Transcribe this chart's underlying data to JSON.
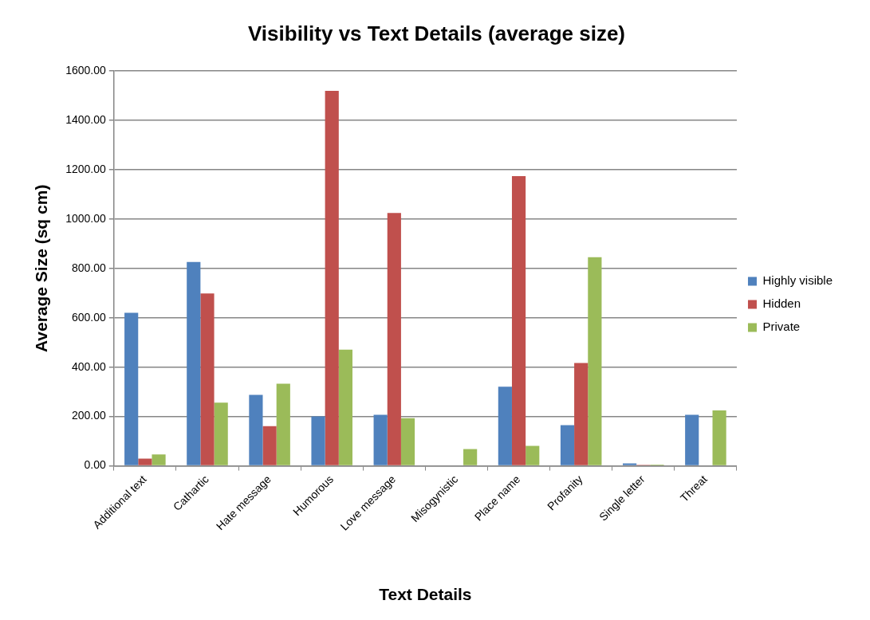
{
  "chart_data": {
    "type": "bar",
    "title": "Visibility vs Text Details (average size)",
    "xlabel": "Text Details",
    "ylabel": "Average Size (sq cm)",
    "categories": [
      "Additional text",
      "Cathartic",
      "Hate message",
      "Humorous",
      "Love message",
      "Misogynistic",
      "Place name",
      "Profanity",
      "Single letter",
      "Threat"
    ],
    "series": [
      {
        "name": "Highly visible",
        "color": "#4f81bd",
        "values": [
          620,
          826,
          288,
          200,
          207,
          null,
          321,
          165,
          10,
          207
        ]
      },
      {
        "name": "Hidden",
        "color": "#c0504d",
        "values": [
          29,
          699,
          161,
          1520,
          1025,
          null,
          1174,
          417,
          4,
          null
        ]
      },
      {
        "name": "Private",
        "color": "#9bbb59",
        "values": [
          46,
          256,
          333,
          471,
          193,
          68,
          81,
          846,
          5,
          225
        ]
      }
    ],
    "ylim": [
      0,
      1600
    ],
    "yticks": [
      {
        "value": 0,
        "label": "0.00"
      },
      {
        "value": 200,
        "label": "200.00"
      },
      {
        "value": 400,
        "label": "400.00"
      },
      {
        "value": 600,
        "label": "600.00"
      },
      {
        "value": 800,
        "label": "800.00"
      },
      {
        "value": 1000,
        "label": "1000.00"
      },
      {
        "value": 1200,
        "label": "1200.00"
      },
      {
        "value": 1400,
        "label": "1400.00"
      },
      {
        "value": 1600,
        "label": "1600.00"
      }
    ],
    "grid": "y",
    "legend": "right"
  }
}
